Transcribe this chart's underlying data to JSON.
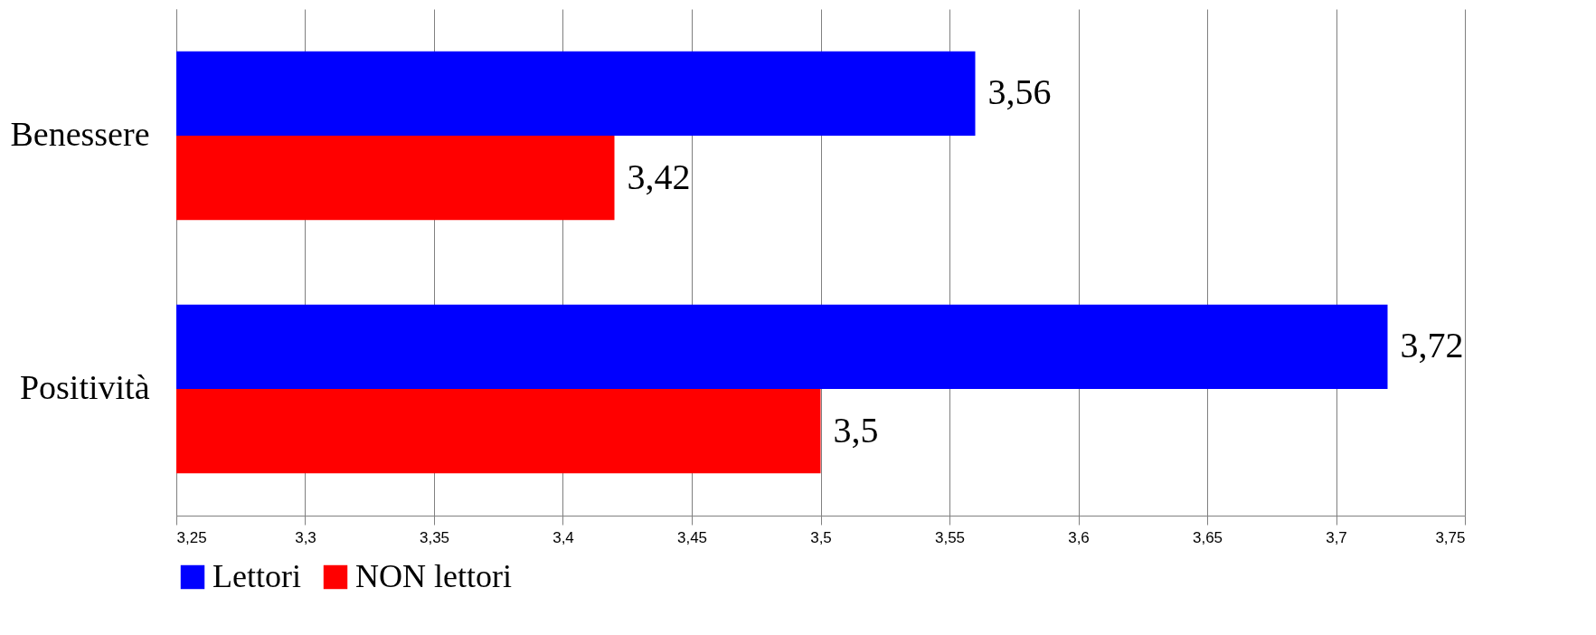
{
  "chart_data": {
    "type": "bar",
    "orientation": "horizontal",
    "categories": [
      "Benessere",
      "Positività"
    ],
    "series": [
      {
        "name": "Lettori",
        "color": "#0000ff",
        "values": [
          3.56,
          3.72
        ],
        "value_labels": [
          "3,56",
          "3,72"
        ]
      },
      {
        "name": "NON lettori",
        "color": "#ff0000",
        "values": [
          3.42,
          3.5
        ],
        "value_labels": [
          "3,42",
          "3,5"
        ]
      }
    ],
    "xlim": [
      3.25,
      3.75
    ],
    "xticks": [
      {
        "value": 3.25,
        "label": "3,25"
      },
      {
        "value": 3.3,
        "label": "3,3"
      },
      {
        "value": 3.35,
        "label": "3,35"
      },
      {
        "value": 3.4,
        "label": "3,4"
      },
      {
        "value": 3.45,
        "label": "3,45"
      },
      {
        "value": 3.5,
        "label": "3,5"
      },
      {
        "value": 3.55,
        "label": "3,55"
      },
      {
        "value": 3.6,
        "label": "3,6"
      },
      {
        "value": 3.65,
        "label": "3,65"
      },
      {
        "value": 3.7,
        "label": "3,7"
      },
      {
        "value": 3.75,
        "label": "3,75"
      }
    ],
    "grid": "x",
    "legend": "bottom"
  }
}
